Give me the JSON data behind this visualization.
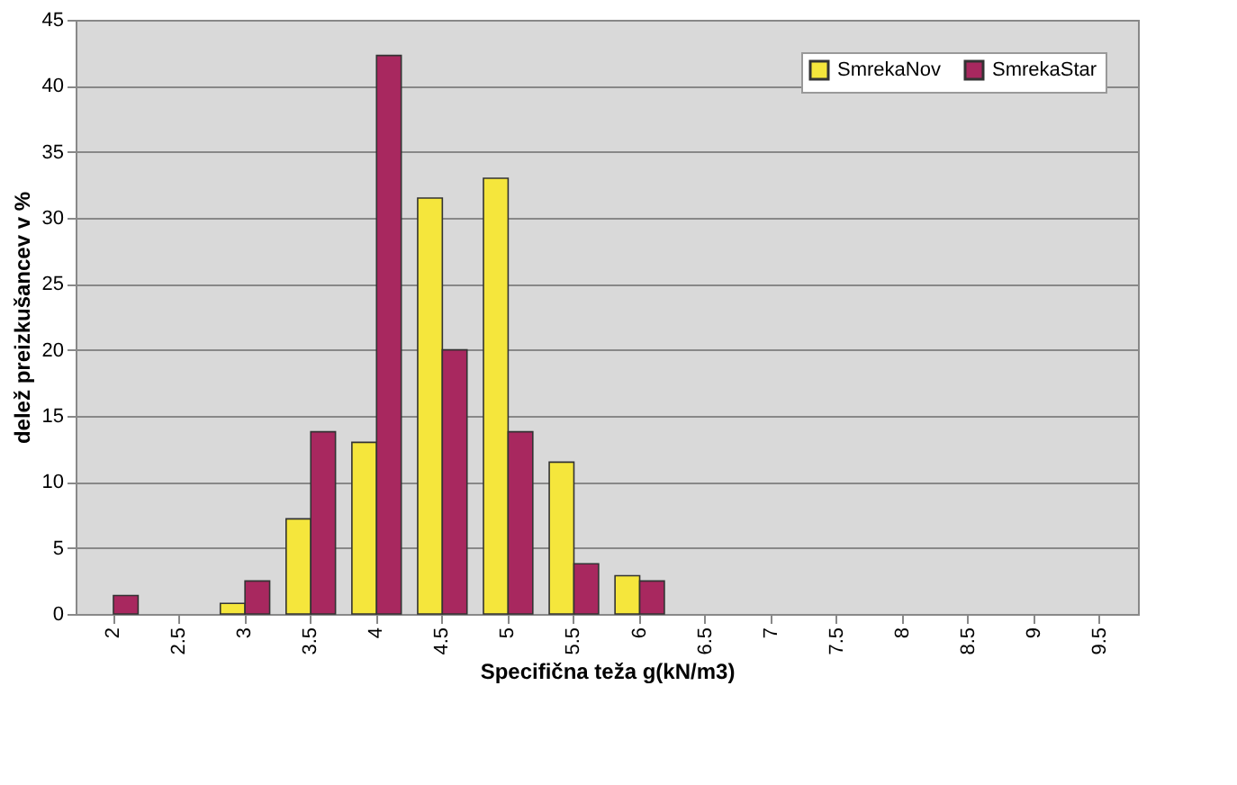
{
  "chart_data": {
    "type": "bar",
    "xlabel": "Specifična teža g(kN/m3)",
    "ylabel": "delež preizkušancev v %",
    "categories": [
      "2",
      "2.5",
      "3",
      "3.5",
      "4",
      "4.5",
      "5",
      "5.5",
      "6",
      "6.5",
      "7",
      "7.5",
      "8",
      "8.5",
      "9",
      "9.5"
    ],
    "series": [
      {
        "name": "SmrekaNov",
        "color": "#f5e63c",
        "values": [
          0,
          0,
          0.8,
          7.2,
          13,
          31.5,
          33,
          11.5,
          2.9,
          0,
          0,
          0,
          0,
          0,
          0,
          0
        ]
      },
      {
        "name": "SmrekaStar",
        "color": "#a8285f",
        "values": [
          1.4,
          0,
          2.5,
          13.8,
          42.3,
          20,
          13.8,
          3.8,
          2.5,
          0,
          0,
          0,
          0,
          0,
          0,
          0
        ]
      }
    ],
    "ylim": [
      0,
      45
    ],
    "yticks": [
      0,
      5,
      10,
      15,
      20,
      25,
      30,
      35,
      40,
      45
    ],
    "grid": "y",
    "legend": "top right"
  }
}
